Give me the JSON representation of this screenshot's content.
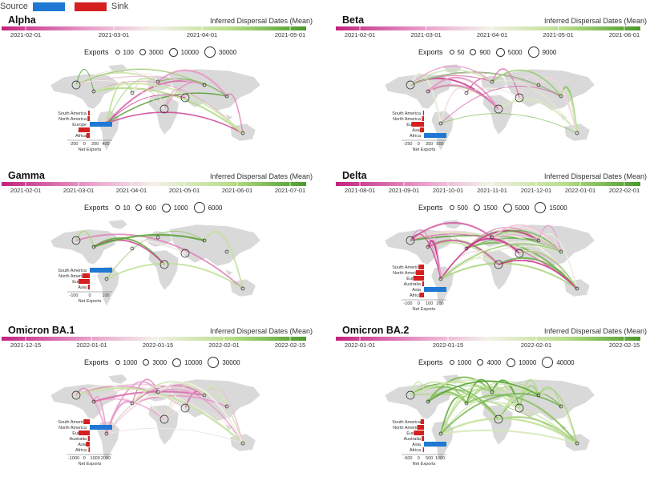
{
  "legend": {
    "source_label": "Source",
    "sink_label": "Sink",
    "source_color": "#1e78d4",
    "sink_color": "#d42020"
  },
  "colorbar_title": "Inferred Dispersal Dates (Mean)",
  "exports_label": "Exports",
  "net_exports_label": "Net Exports",
  "colors": {
    "land": "#d9d9d9",
    "early": "#c2227e",
    "mid": "#f2f2e8",
    "late": "#4a9a2a"
  },
  "chart_data": [
    {
      "type": "map-flows",
      "title": "Alpha",
      "date_ticks": [
        "2021-02-01",
        "2021-03-01",
        "2021-04-01",
        "2021-05-01"
      ],
      "export_sizes": [
        "100",
        "3000",
        "10000",
        "30000"
      ],
      "net_exports": {
        "regions": [
          "South America",
          "North America",
          "Europe",
          "Asia",
          "Africa"
        ],
        "values": [
          -30,
          -40,
          400,
          -200,
          -60
        ],
        "xticks": [
          "-200",
          "0",
          "200",
          "400"
        ]
      }
    },
    {
      "type": "map-flows",
      "title": "Beta",
      "date_ticks": [
        "2021-02-01",
        "2021-03-01",
        "2021-04-01",
        "2021-05-01",
        "2021-06-01"
      ],
      "export_sizes": [
        "50",
        "900",
        "5000",
        "9000"
      ],
      "net_exports": {
        "regions": [
          "South America",
          "North America",
          "Europe",
          "Asia",
          "Africa"
        ],
        "values": [
          -20,
          -40,
          -250,
          -80,
          450
        ],
        "xticks": [
          "-250",
          "0",
          "250",
          "500"
        ]
      }
    },
    {
      "type": "map-flows",
      "title": "Gamma",
      "date_ticks": [
        "2021-02-01",
        "2021-03-01",
        "2021-04-01",
        "2021-05-01",
        "2021-06-01",
        "2021-07-01"
      ],
      "export_sizes": [
        "10",
        "600",
        "1000",
        "6000"
      ],
      "net_exports": {
        "regions": [
          "South America",
          "North America",
          "Europe",
          "Asia"
        ],
        "values": [
          180,
          -60,
          -90,
          -15
        ],
        "xticks": [
          "-100",
          "0",
          "100"
        ]
      }
    },
    {
      "type": "map-flows",
      "title": "Delta",
      "date_ticks": [
        "2021-08-01",
        "2021-09-01",
        "2021-10-01",
        "2021-11-01",
        "2021-12-01",
        "2022-01-01",
        "2022-02-01"
      ],
      "export_sizes": [
        "500",
        "1500",
        "5000",
        "15000"
      ],
      "net_exports": {
        "regions": [
          "South America",
          "North America",
          "Europe",
          "Australia",
          "Asia",
          "Africa"
        ],
        "values": [
          -60,
          -90,
          -120,
          -20,
          250,
          -50
        ],
        "xticks": [
          "-100",
          "0",
          "100",
          "200"
        ]
      }
    },
    {
      "type": "map-flows",
      "title": "Omicron BA.1",
      "date_ticks": [
        "2021-12-15",
        "2022-01-01",
        "2022-01-15",
        "2022-02-01",
        "2022-02-15"
      ],
      "export_sizes": [
        "1000",
        "3000",
        "10000",
        "30000"
      ],
      "net_exports": {
        "regions": [
          "South America",
          "North America",
          "Europe",
          "Australia",
          "Asia",
          "Africa"
        ],
        "values": [
          -500,
          1800,
          -900,
          -150,
          -300,
          -100
        ],
        "xticks": [
          "-1000",
          "0",
          "1000",
          "2000"
        ]
      }
    },
    {
      "type": "map-flows",
      "title": "Omicron BA.2",
      "date_ticks": [
        "2022-01-01",
        "2022-01-15",
        "2022-02-01",
        "2022-02-15"
      ],
      "export_sizes": [
        "1000",
        "4000",
        "10000",
        "40000"
      ],
      "net_exports": {
        "regions": [
          "South America",
          "North America",
          "Europe",
          "Australia",
          "Asia",
          "Africa"
        ],
        "values": [
          -150,
          -300,
          -450,
          -100,
          1000,
          -50
        ],
        "xticks": [
          "-500",
          "0",
          "500",
          "1000"
        ]
      }
    }
  ]
}
